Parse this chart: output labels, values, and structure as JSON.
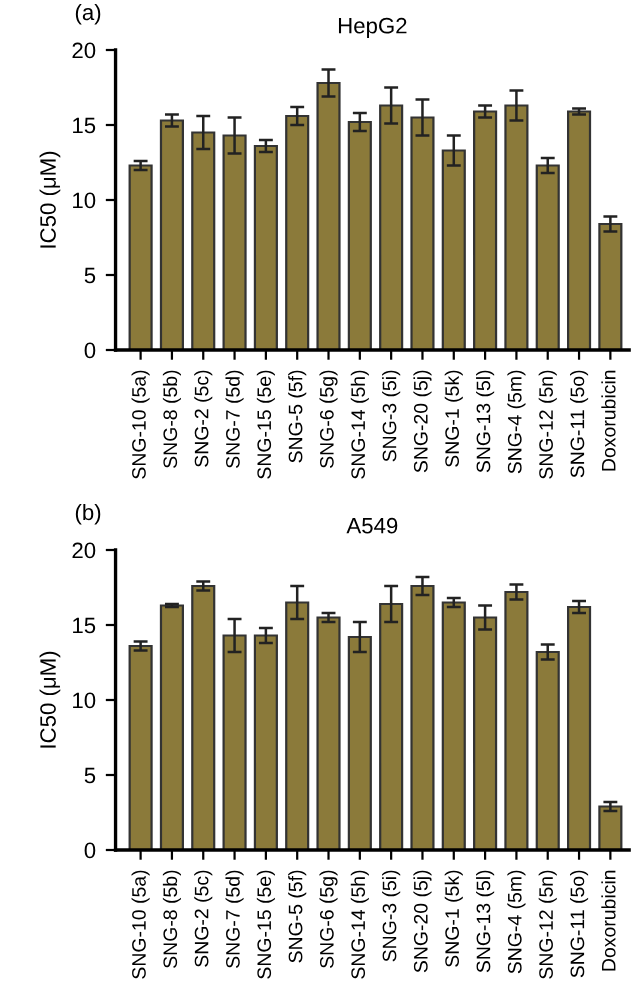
{
  "chart_data": [
    {
      "type": "bar",
      "title": "HepG2",
      "annotations": [
        "(a)"
      ],
      "ylabel": "IC50 (μM)",
      "categories": [
        "SNG-10 (5a)",
        "SNG-8 (5b)",
        "SNG-2 (5c)",
        "SNG-7 (5d)",
        "SNG-15 (5e)",
        "SNG-5 (5f)",
        "SNG-6 (5g)",
        "SNG-14 (5h)",
        "SNG-3 (5i)",
        "SNG-20 (5j)",
        "SNG-1 (5k)",
        "SNG-13 (5l)",
        "SNG-4 (5m)",
        "SNG-12 (5n)",
        "SNG-11 (5o)",
        "Doxorubicin"
      ],
      "values": [
        12.3,
        15.3,
        14.5,
        14.3,
        13.6,
        15.6,
        17.8,
        15.2,
        16.3,
        15.5,
        13.3,
        15.9,
        16.3,
        12.3,
        15.9,
        8.4
      ],
      "errors": [
        0.3,
        0.4,
        1.1,
        1.2,
        0.4,
        0.6,
        0.9,
        0.6,
        1.2,
        1.2,
        1.0,
        0.4,
        1.0,
        0.5,
        0.2,
        0.5
      ],
      "color": "#8b7a3a",
      "ylim": [
        0,
        20
      ],
      "yticks": [
        0,
        5,
        10,
        15,
        20
      ],
      "grid": false
    },
    {
      "type": "bar",
      "title": "A549",
      "annotations": [
        "(b)"
      ],
      "ylabel": "IC50 (μM)",
      "categories": [
        "SNG-10 (5a)",
        "SNG-8 (5b)",
        "SNG-2 (5c)",
        "SNG-7 (5d)",
        "SNG-15 (5e)",
        "SNG-5 (5f)",
        "SNG-6 (5g)",
        "SNG-14 (5h)",
        "SNG-3 (5i)",
        "SNG-20 (5j)",
        "SNG-1 (5k)",
        "SNG-13 (5l)",
        "SNG-4 (5m)",
        "SNG-12 (5n)",
        "SNG-11 (5o)",
        "Doxorubicin"
      ],
      "values": [
        13.6,
        16.3,
        17.6,
        14.3,
        14.3,
        16.5,
        15.5,
        14.2,
        16.4,
        17.6,
        16.5,
        15.5,
        17.2,
        13.2,
        16.2,
        2.9
      ],
      "errors": [
        0.3,
        0.1,
        0.3,
        1.1,
        0.5,
        1.1,
        0.3,
        1.0,
        1.2,
        0.6,
        0.3,
        0.8,
        0.5,
        0.5,
        0.4,
        0.3
      ],
      "color": "#8b7a3a",
      "ylim": [
        0,
        20
      ],
      "yticks": [
        0,
        5,
        10,
        15,
        20
      ],
      "grid": false
    }
  ]
}
